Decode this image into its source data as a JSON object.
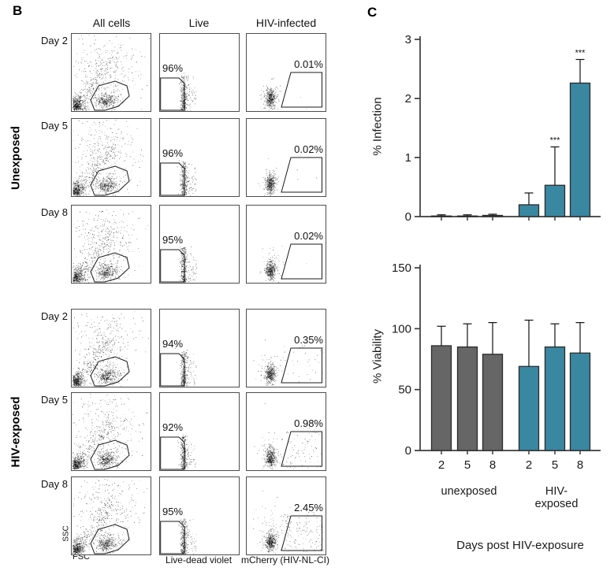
{
  "panel_b": {
    "label": "B",
    "col_headers": [
      "All cells",
      "Live",
      "HIV-infected"
    ],
    "group_labels": [
      "Unexposed",
      "HIV-exposed"
    ],
    "axis_labels": {
      "ssc": "SSC",
      "fsc": "FSC",
      "live_dead": "Live-dead violet",
      "mcherry": "mCherry (HIV-NL-CI)"
    },
    "rows": [
      {
        "day": "Day 2",
        "group": "Unexposed",
        "live_pct": "96%",
        "infected_pct": "0.01%"
      },
      {
        "day": "Day 5",
        "group": "Unexposed",
        "live_pct": "96%",
        "infected_pct": "0.02%"
      },
      {
        "day": "Day 8",
        "group": "Unexposed",
        "live_pct": "95%",
        "infected_pct": "0.02%"
      },
      {
        "day": "Day 2",
        "group": "HIV-exposed",
        "live_pct": "94%",
        "infected_pct": "0.35%"
      },
      {
        "day": "Day 5",
        "group": "HIV-exposed",
        "live_pct": "92%",
        "infected_pct": "0.98%"
      },
      {
        "day": "Day 8",
        "group": "HIV-exposed",
        "live_pct": "95%",
        "infected_pct": "2.45%"
      }
    ],
    "gates": {
      "all_cells_polygon": [
        [
          29,
          97
        ],
        [
          24,
          84
        ],
        [
          34,
          66
        ],
        [
          55,
          60
        ],
        [
          70,
          66
        ],
        [
          73,
          79
        ],
        [
          59,
          92
        ],
        [
          42,
          97
        ]
      ],
      "live_polygon": [
        [
          0.7,
          56
        ],
        [
          24,
          56
        ],
        [
          31,
          63
        ],
        [
          31,
          97
        ],
        [
          0.7,
          97
        ]
      ],
      "infected_polygon": [
        [
          56,
          49
        ],
        [
          95.5,
          49
        ],
        [
          95.5,
          93
        ],
        [
          44,
          93
        ]
      ]
    },
    "infected_gate_dot_counts": [
      2,
      3,
      3,
      30,
      70,
      130
    ]
  },
  "panel_c": {
    "label": "C",
    "xlabel": "Days post HIV-exposure",
    "group_labels": [
      "unexposed",
      "HIV-\nexposed"
    ],
    "colors": {
      "unexposed": "#666666",
      "hiv_exposed": "#3a87a1"
    }
  },
  "chart_data": [
    {
      "type": "bar",
      "ylabel": "% Infection",
      "ylim": [
        0,
        3
      ],
      "yticks": [
        0,
        1,
        2,
        3
      ],
      "categories": [
        "2",
        "5",
        "8",
        "2",
        "5",
        "8"
      ],
      "groups": [
        "unexposed",
        "unexposed",
        "unexposed",
        "HIV-exposed",
        "HIV-exposed",
        "HIV-exposed"
      ],
      "values": [
        0.01,
        0.01,
        0.02,
        0.2,
        0.53,
        2.26
      ],
      "errors": [
        0.02,
        0.02,
        0.02,
        0.2,
        0.65,
        0.4
      ],
      "annotations": [
        "",
        "",
        "",
        "",
        "***",
        "***"
      ],
      "show_x_labels": false,
      "grid": false,
      "legend": false
    },
    {
      "type": "bar",
      "ylabel": "% Viability",
      "ylim": [
        0,
        150
      ],
      "yticks": [
        0,
        50,
        100,
        150
      ],
      "categories": [
        "2",
        "5",
        "8",
        "2",
        "5",
        "8"
      ],
      "groups": [
        "unexposed",
        "unexposed",
        "unexposed",
        "HIV-exposed",
        "HIV-exposed",
        "HIV-exposed"
      ],
      "values": [
        86,
        85,
        79,
        69,
        85,
        80
      ],
      "errors": [
        16,
        19,
        26,
        38,
        19,
        25
      ],
      "annotations": [
        "",
        "",
        "",
        "",
        "",
        ""
      ],
      "show_x_labels": true,
      "grid": false,
      "legend": false
    }
  ]
}
